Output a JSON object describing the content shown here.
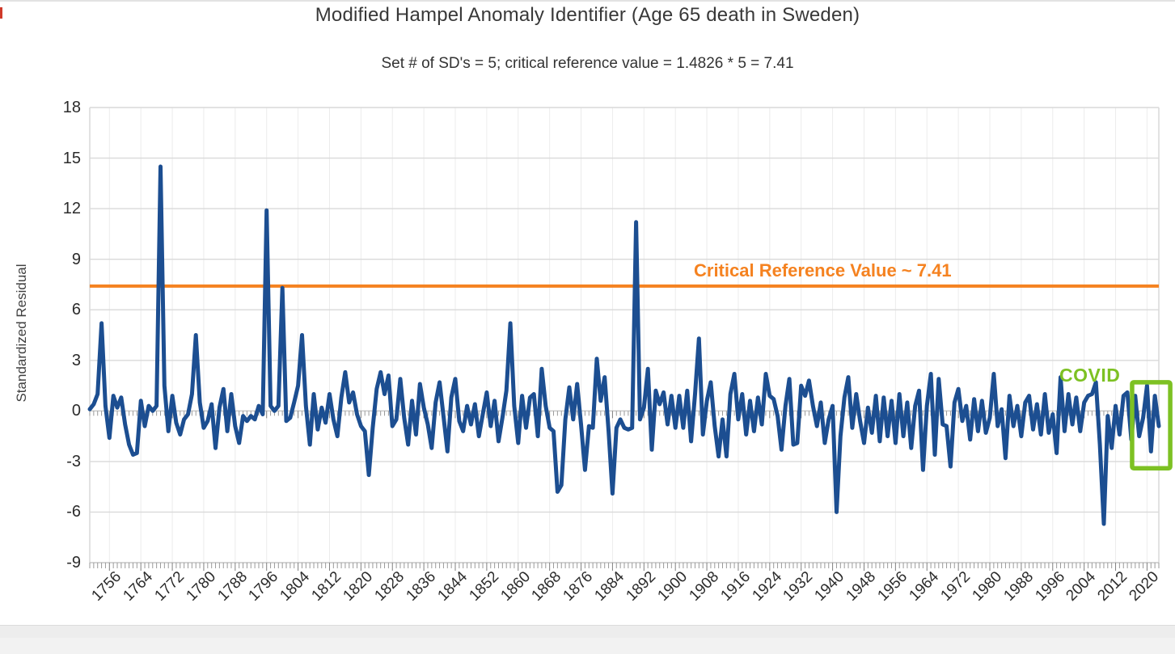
{
  "header": {
    "title": "Modified Hampel Anomaly Identifier (Age 65 death in Sweden)",
    "subtitle": "Set # of SD's = 5; critical reference value = 1.4826 * 5 = 7.41"
  },
  "y_axis_title": "Standardized Residual",
  "annotations": {
    "critical_reference_label": "Critical Reference Value ~ 7.41",
    "covid_label": "COVID"
  },
  "colors": {
    "line_blue": "#1c4e91",
    "reference_orange": "#f58220",
    "covid_green": "#7dc123",
    "gridline": "#d9d9d9",
    "axis_line": "#c6c6c6",
    "tick": "#9a9a9a",
    "text": "#2b2b2b"
  },
  "chart_data": {
    "type": "line",
    "title": "Modified Hampel Anomaly Identifier (Age 65 death in Sweden)",
    "subtitle": "Set # of SD's = 5; critical reference value = 1.4826 * 5 = 7.41",
    "xlabel": "",
    "ylabel": "Standardized Residual",
    "ylim": [
      -9,
      18
    ],
    "yticks": [
      -9,
      -6,
      -3,
      0,
      3,
      6,
      9,
      12,
      15,
      18
    ],
    "xticks": [
      1756,
      1764,
      1772,
      1780,
      1788,
      1796,
      1804,
      1812,
      1820,
      1828,
      1836,
      1844,
      1852,
      1860,
      1868,
      1876,
      1884,
      1892,
      1900,
      1908,
      1916,
      1924,
      1932,
      1940,
      1948,
      1956,
      1964,
      1972,
      1980,
      1988,
      1996,
      2004,
      2012,
      2020
    ],
    "grid": true,
    "legend": "none",
    "x_start": 1751,
    "x_step": 1,
    "series": [
      {
        "name": "Standardized Residual",
        "values": [
          0.1,
          0.4,
          1.0,
          5.2,
          0.3,
          -1.6,
          0.9,
          0.2,
          0.8,
          -0.8,
          -2.0,
          -2.6,
          -2.5,
          0.6,
          -0.9,
          0.3,
          0.0,
          0.3,
          14.5,
          1.5,
          -1.2,
          0.9,
          -0.7,
          -1.4,
          -0.5,
          -0.2,
          1.0,
          4.5,
          0.5,
          -1.0,
          -0.6,
          0.4,
          -2.2,
          0.2,
          1.3,
          -1.2,
          1.0,
          -0.9,
          -1.9,
          -0.3,
          -0.6,
          -0.3,
          -0.5,
          0.3,
          -0.2,
          11.9,
          0.3,
          0.0,
          0.3,
          7.3,
          -0.6,
          -0.4,
          0.5,
          1.5,
          4.5,
          0.3,
          -2.0,
          1.0,
          -1.1,
          0.2,
          -0.7,
          1.0,
          -0.5,
          -1.5,
          0.8,
          2.3,
          0.5,
          1.1,
          -0.2,
          -0.9,
          -1.2,
          -3.8,
          -1.0,
          1.3,
          2.3,
          1.0,
          2.1,
          -0.9,
          -0.5,
          1.9,
          -0.4,
          -2.0,
          0.6,
          -1.4,
          1.6,
          0.2,
          -0.8,
          -2.2,
          0.5,
          1.7,
          -0.3,
          -2.4,
          0.8,
          1.9,
          -0.6,
          -1.2,
          0.3,
          -0.8,
          0.4,
          -1.5,
          -0.2,
          1.1,
          -0.9,
          0.6,
          -1.8,
          -0.4,
          1.2,
          5.2,
          0.3,
          -1.9,
          0.9,
          -1.0,
          0.8,
          1.0,
          -1.5,
          2.5,
          0.3,
          -1.0,
          -1.2,
          -4.8,
          -4.4,
          -0.5,
          1.4,
          -0.5,
          1.6,
          -0.8,
          -3.5,
          -0.9,
          -1.0,
          3.1,
          0.6,
          2.0,
          -1.2,
          -4.9,
          -1.0,
          -0.5,
          -1.0,
          -1.1,
          -1.0,
          11.2,
          -0.5,
          0.2,
          2.5,
          -2.3,
          1.2,
          0.4,
          1.1,
          -0.8,
          0.9,
          -1.0,
          0.9,
          -1.0,
          1.2,
          -1.8,
          1.0,
          4.3,
          -1.4,
          0.6,
          1.7,
          -0.9,
          -2.7,
          -0.5,
          -2.7,
          1.0,
          2.2,
          -0.5,
          1.0,
          -1.4,
          0.6,
          -1.2,
          0.8,
          -0.8,
          2.2,
          0.9,
          0.7,
          -0.3,
          -2.3,
          0.3,
          1.9,
          -2.0,
          -1.9,
          1.5,
          0.9,
          1.8,
          0.3,
          -0.9,
          0.5,
          -1.9,
          -0.5,
          0.3,
          -6.0,
          -1.5,
          0.8,
          2.0,
          -1.0,
          1.0,
          -0.6,
          -1.9,
          0.2,
          -1.3,
          0.9,
          -1.8,
          0.8,
          -1.5,
          0.6,
          -1.9,
          1.0,
          -1.5,
          0.5,
          -2.2,
          0.3,
          1.2,
          -3.5,
          0.3,
          2.2,
          -2.6,
          1.9,
          -0.8,
          -0.9,
          -3.3,
          0.5,
          1.3,
          -0.6,
          0.3,
          -1.7,
          0.7,
          -1.2,
          0.6,
          -1.3,
          -0.4,
          2.2,
          -0.9,
          0.1,
          -2.8,
          0.9,
          -0.9,
          0.3,
          -1.5,
          0.5,
          0.9,
          -1.1,
          0.4,
          -1.4,
          1.0,
          -1.3,
          -0.2,
          -2.5,
          2.0,
          -1.2,
          1.0,
          -0.8,
          0.8,
          -1.2,
          0.5,
          0.9,
          1.0,
          1.7,
          -2.0,
          -6.7,
          -0.3,
          -2.2,
          0.3,
          -1.4,
          0.9,
          1.1,
          -1.7,
          0.9,
          -1.5,
          -0.4,
          1.5,
          -2.4,
          0.9,
          -0.9
        ]
      }
    ],
    "reference_line": {
      "value": 7.41,
      "label": "Critical Reference Value ~ 7.41",
      "color": "#f58220"
    },
    "covid_box": {
      "label": "COVID",
      "x0_year": 2016.2,
      "x1_year": 2025.9,
      "y0": -3.4,
      "y1": 1.7,
      "color": "#7dc123"
    }
  }
}
